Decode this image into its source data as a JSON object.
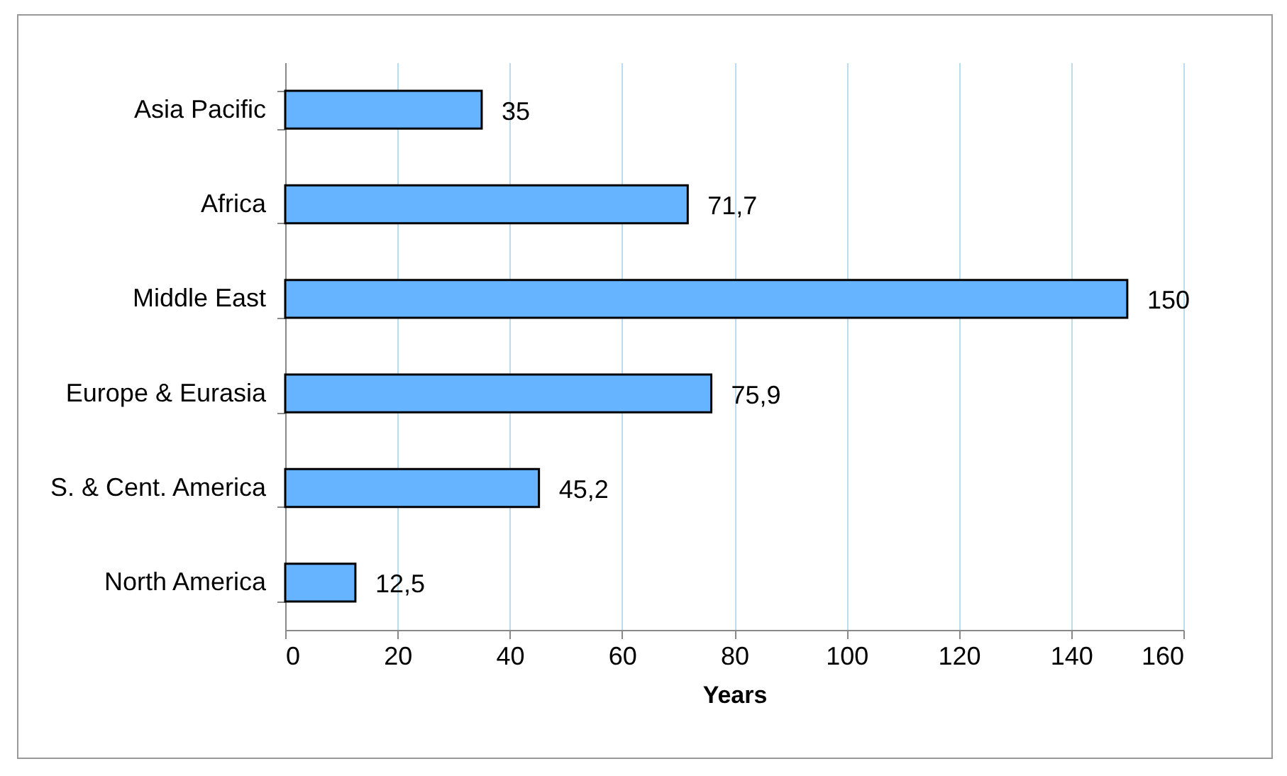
{
  "chart_data": {
    "type": "bar",
    "orientation": "horizontal",
    "xlabel": "Years",
    "categories": [
      "Asia Pacific",
      "Africa",
      "Middle East",
      "Europe & Eurasia",
      "S. & Cent. America",
      "North America"
    ],
    "values": [
      35,
      71.7,
      150,
      75.9,
      45.2,
      12.5
    ],
    "value_labels": [
      "35",
      "71,7",
      "150",
      "75,9",
      "45,2",
      "12,5"
    ],
    "color": "#66b3ff",
    "xlim": [
      0,
      160
    ],
    "xticks": [
      0,
      20,
      40,
      60,
      80,
      100,
      120,
      140,
      160
    ],
    "grid": "x"
  }
}
